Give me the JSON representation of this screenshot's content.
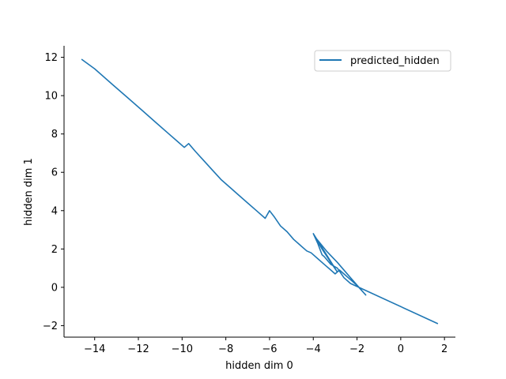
{
  "chart_data": {
    "type": "line",
    "xlabel": "hidden dim 0",
    "ylabel": "hidden dim 1",
    "xlim": [
      -15.4,
      2.5
    ],
    "ylim": [
      -2.6,
      12.6
    ],
    "xticks": [
      -14,
      -12,
      -10,
      -8,
      -6,
      -4,
      -2,
      0,
      2
    ],
    "yticks": [
      -2,
      0,
      2,
      4,
      6,
      8,
      10,
      12
    ],
    "xtick_labels": [
      "−14",
      "−12",
      "−10",
      "−8",
      "−6",
      "−4",
      "−2",
      "0",
      "2"
    ],
    "ytick_labels": [
      "−2",
      "0",
      "2",
      "4",
      "6",
      "8",
      "10",
      "12"
    ],
    "grid": false,
    "legend_position": "top-right",
    "colors": {
      "series": "#1f77b4"
    },
    "series": [
      {
        "name": "predicted_hidden",
        "x": [
          -14.6,
          -14.0,
          -13.2,
          -12.5,
          -11.8,
          -11.2,
          -10.6,
          -10.2,
          -9.9,
          -9.7,
          -9.4,
          -9.0,
          -8.6,
          -8.2,
          -7.8,
          -7.4,
          -7.0,
          -6.6,
          -6.2,
          -6.0,
          -5.8,
          -5.5,
          -5.2,
          -4.9,
          -4.6,
          -4.3,
          -4.1,
          -3.8,
          -3.5,
          -3.2,
          -3.0,
          -2.8,
          -2.6,
          -2.3,
          -2.0,
          -1.6,
          -2.3,
          -2.9,
          -3.4,
          -3.9,
          -3.6,
          -3.2,
          -2.9,
          -4.0,
          -3.8,
          -3.6,
          -3.5,
          -3.2,
          -2.9,
          -2.6,
          -2.3,
          1.7
        ],
        "y": [
          11.9,
          11.4,
          10.6,
          9.9,
          9.2,
          8.6,
          8.0,
          7.6,
          7.3,
          7.5,
          7.1,
          6.6,
          6.1,
          5.6,
          5.2,
          4.8,
          4.4,
          4.0,
          3.6,
          4.0,
          3.7,
          3.2,
          2.9,
          2.5,
          2.2,
          1.9,
          1.8,
          1.5,
          1.2,
          0.9,
          0.7,
          0.9,
          0.7,
          0.4,
          0.1,
          -0.4,
          0.5,
          1.3,
          1.9,
          2.6,
          2.0,
          1.3,
          0.8,
          2.8,
          2.3,
          1.7,
          1.6,
          1.2,
          1.0,
          0.5,
          0.2,
          -1.9
        ]
      }
    ]
  }
}
